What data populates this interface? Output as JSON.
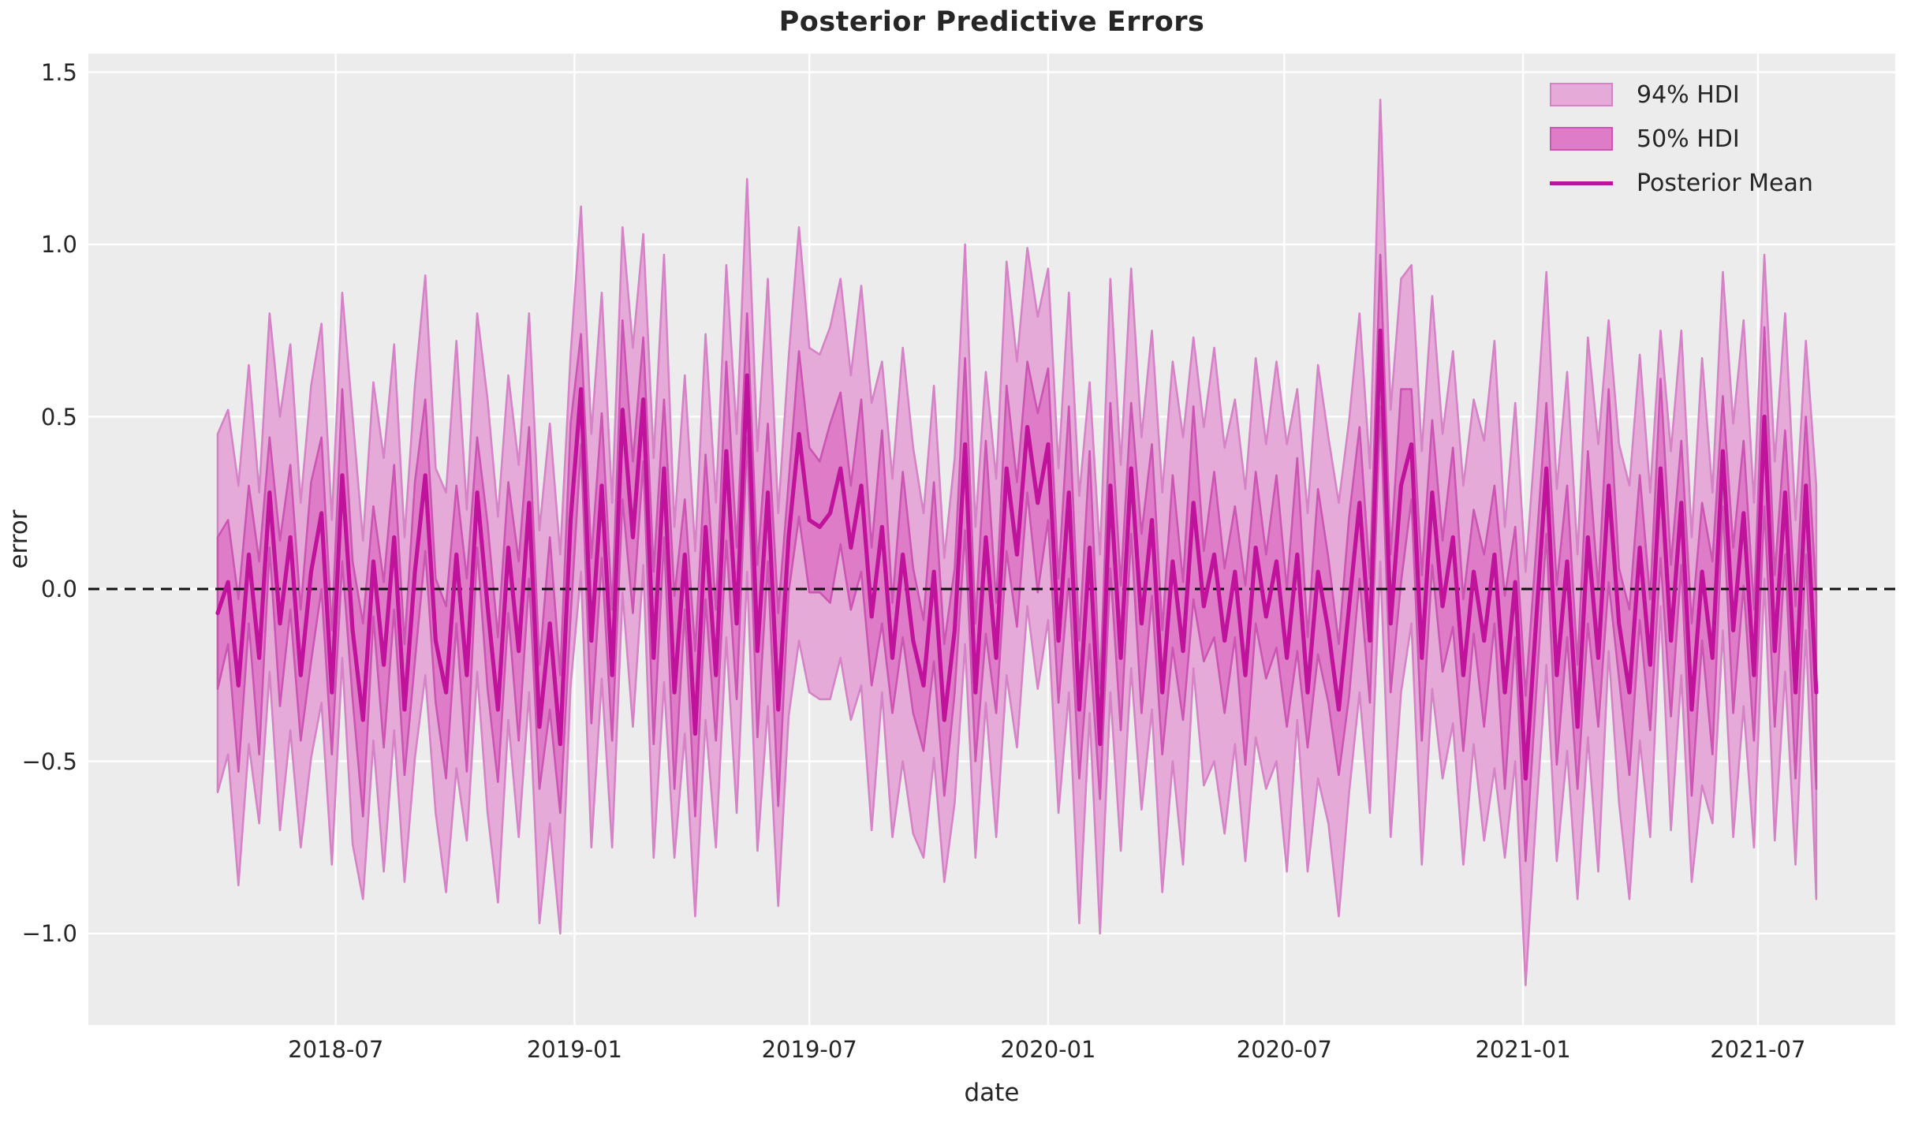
{
  "title": "Posterior Predictive Errors",
  "chart_data": {
    "type": "area",
    "title": "Posterior Predictive Errors",
    "xlabel": "date",
    "ylabel": "error",
    "grid": true,
    "legend_position": "upper right",
    "x_start": "2018-04-01",
    "x_step_days": 8,
    "n_points": 155,
    "ylim": [
      -1.27,
      1.55
    ],
    "yticks": [
      {
        "label": "1.5",
        "value": 1.5
      },
      {
        "label": "1.0",
        "value": 1.0
      },
      {
        "label": "0.5",
        "value": 0.5
      },
      {
        "label": "0.0",
        "value": 0.0
      },
      {
        "label": "−0.5",
        "value": -0.5
      },
      {
        "label": "−1.0",
        "value": -1.0
      }
    ],
    "xticks": [
      {
        "label": "2018-07",
        "day": 91
      },
      {
        "label": "2019-01",
        "day": 275
      },
      {
        "label": "2019-07",
        "day": 456
      },
      {
        "label": "2020-01",
        "day": 640
      },
      {
        "label": "2020-07",
        "day": 822
      },
      {
        "label": "2021-01",
        "day": 1006
      },
      {
        "label": "2021-07",
        "day": 1187
      }
    ],
    "zero_line": {
      "value": 0.0,
      "style": "dashed",
      "color": "#111111"
    },
    "legend": [
      {
        "label": "94% HDI",
        "type": "patch"
      },
      {
        "label": "50% HDI",
        "type": "patch"
      },
      {
        "label": "Posterior Mean",
        "type": "line"
      }
    ],
    "colors": {
      "plot_bg": "#ececec",
      "grid": "#ffffff",
      "hdi94_fill": "#e6aad8",
      "hdi94_edge": "#d583c6",
      "hdi50_fill": "#df7cc8",
      "hdi50_edge": "#cb55b2",
      "mean_line": "#c0139b",
      "zero_line": "#111111",
      "text": "#262626"
    },
    "series": {
      "mean": [
        -0.07,
        0.02,
        -0.28,
        0.1,
        -0.2,
        0.28,
        -0.1,
        0.15,
        -0.25,
        0.05,
        0.22,
        -0.3,
        0.33,
        -0.12,
        -0.38,
        0.08,
        -0.22,
        0.15,
        -0.35,
        0.05,
        0.33,
        -0.15,
        -0.3,
        0.1,
        -0.25,
        0.28,
        -0.05,
        -0.35,
        0.12,
        -0.18,
        0.25,
        -0.4,
        -0.1,
        -0.45,
        0.2,
        0.58,
        -0.15,
        0.3,
        -0.25,
        0.52,
        0.15,
        0.55,
        -0.2,
        0.35,
        -0.3,
        0.1,
        -0.42,
        0.18,
        -0.25,
        0.4,
        -0.1,
        0.62,
        -0.18,
        0.28,
        -0.35,
        0.15,
        0.45,
        0.2,
        0.18,
        0.22,
        0.35,
        0.12,
        0.3,
        -0.08,
        0.18,
        -0.2,
        0.1,
        -0.15,
        -0.28,
        0.05,
        -0.38,
        -0.12,
        0.42,
        -0.3,
        0.15,
        -0.2,
        0.35,
        0.1,
        0.47,
        0.25,
        0.42,
        -0.15,
        0.28,
        -0.35,
        0.12,
        -0.45,
        0.3,
        -0.2,
        0.35,
        -0.1,
        0.2,
        -0.3,
        0.08,
        -0.18,
        0.25,
        -0.05,
        0.1,
        -0.15,
        0.05,
        -0.25,
        0.12,
        -0.08,
        0.08,
        -0.2,
        0.1,
        -0.3,
        0.05,
        -0.12,
        -0.35,
        -0.05,
        0.25,
        -0.15,
        0.75,
        -0.1,
        0.3,
        0.42,
        -0.2,
        0.28,
        -0.05,
        0.15,
        -0.25,
        0.05,
        -0.15,
        0.1,
        -0.3,
        0.02,
        -0.55,
        -0.1,
        0.35,
        -0.25,
        0.08,
        -0.4,
        0.15,
        -0.2,
        0.3,
        -0.1,
        -0.3,
        0.12,
        -0.22,
        0.35,
        -0.15,
        0.25,
        -0.35,
        0.05,
        -0.2,
        0.4,
        -0.12,
        0.22,
        -0.25,
        0.5,
        -0.18,
        0.28,
        -0.3,
        0.3,
        -0.3
      ],
      "hdi50_halfwidth": [
        0.22,
        0.18,
        0.25,
        0.2,
        0.28,
        0.16,
        0.24,
        0.21,
        0.19,
        0.26,
        0.22,
        0.18,
        0.25,
        0.2,
        0.28,
        0.16,
        0.24,
        0.21,
        0.19,
        0.26,
        0.22,
        0.18,
        0.25,
        0.2,
        0.28,
        0.16,
        0.24,
        0.21,
        0.19,
        0.26,
        0.22,
        0.18,
        0.25,
        0.2,
        0.28,
        0.16,
        0.24,
        0.21,
        0.19,
        0.26,
        0.22,
        0.18,
        0.25,
        0.2,
        0.28,
        0.16,
        0.24,
        0.21,
        0.19,
        0.26,
        0.22,
        0.18,
        0.25,
        0.2,
        0.28,
        0.16,
        0.24,
        0.21,
        0.19,
        0.26,
        0.22,
        0.18,
        0.25,
        0.2,
        0.28,
        0.16,
        0.24,
        0.21,
        0.19,
        0.26,
        0.22,
        0.18,
        0.25,
        0.2,
        0.28,
        0.16,
        0.24,
        0.21,
        0.19,
        0.26,
        0.22,
        0.18,
        0.25,
        0.2,
        0.28,
        0.16,
        0.24,
        0.21,
        0.19,
        0.26,
        0.22,
        0.18,
        0.25,
        0.2,
        0.28,
        0.16,
        0.24,
        0.21,
        0.19,
        0.26,
        0.22,
        0.18,
        0.25,
        0.2,
        0.28,
        0.16,
        0.24,
        0.21,
        0.19,
        0.26,
        0.22,
        0.18,
        0.22,
        0.2,
        0.28,
        0.16,
        0.24,
        0.21,
        0.19,
        0.26,
        0.22,
        0.18,
        0.25,
        0.2,
        0.28,
        0.16,
        0.24,
        0.21,
        0.19,
        0.26,
        0.22,
        0.18,
        0.25,
        0.2,
        0.28,
        0.16,
        0.24,
        0.21,
        0.19,
        0.26,
        0.22,
        0.18,
        0.25,
        0.2,
        0.28,
        0.16,
        0.24,
        0.21,
        0.19,
        0.26,
        0.22,
        0.18,
        0.25,
        0.2,
        0.28
      ],
      "hdi94_halfwidth": [
        0.52,
        0.5,
        0.58,
        0.55,
        0.48,
        0.52,
        0.6,
        0.56,
        0.5,
        0.54,
        0.55,
        0.5,
        0.53,
        0.62,
        0.52,
        0.52,
        0.6,
        0.56,
        0.5,
        0.54,
        0.58,
        0.5,
        0.58,
        0.62,
        0.48,
        0.52,
        0.6,
        0.56,
        0.5,
        0.54,
        0.55,
        0.57,
        0.58,
        0.55,
        0.48,
        0.53,
        0.6,
        0.56,
        0.5,
        0.53,
        0.55,
        0.48,
        0.58,
        0.62,
        0.48,
        0.52,
        0.53,
        0.56,
        0.5,
        0.54,
        0.55,
        0.57,
        0.58,
        0.62,
        0.57,
        0.52,
        0.6,
        0.5,
        0.5,
        0.54,
        0.55,
        0.5,
        0.58,
        0.62,
        0.48,
        0.52,
        0.6,
        0.56,
        0.5,
        0.54,
        0.47,
        0.5,
        0.58,
        0.48,
        0.48,
        0.52,
        0.6,
        0.56,
        0.52,
        0.54,
        0.51,
        0.5,
        0.58,
        0.62,
        0.48,
        0.55,
        0.6,
        0.56,
        0.58,
        0.54,
        0.55,
        0.58,
        0.58,
        0.62,
        0.48,
        0.52,
        0.6,
        0.56,
        0.5,
        0.54,
        0.55,
        0.5,
        0.58,
        0.62,
        0.48,
        0.52,
        0.6,
        0.56,
        0.6,
        0.54,
        0.55,
        0.5,
        0.67,
        0.62,
        0.6,
        0.52,
        0.6,
        0.57,
        0.5,
        0.54,
        0.55,
        0.5,
        0.58,
        0.62,
        0.48,
        0.52,
        0.6,
        0.56,
        0.57,
        0.54,
        0.55,
        0.5,
        0.58,
        0.62,
        0.48,
        0.52,
        0.6,
        0.56,
        0.5,
        0.4,
        0.55,
        0.5,
        0.5,
        0.62,
        0.48,
        0.52,
        0.6,
        0.56,
        0.5,
        0.47,
        0.55,
        0.52,
        0.5,
        0.42,
        0.6
      ]
    }
  }
}
